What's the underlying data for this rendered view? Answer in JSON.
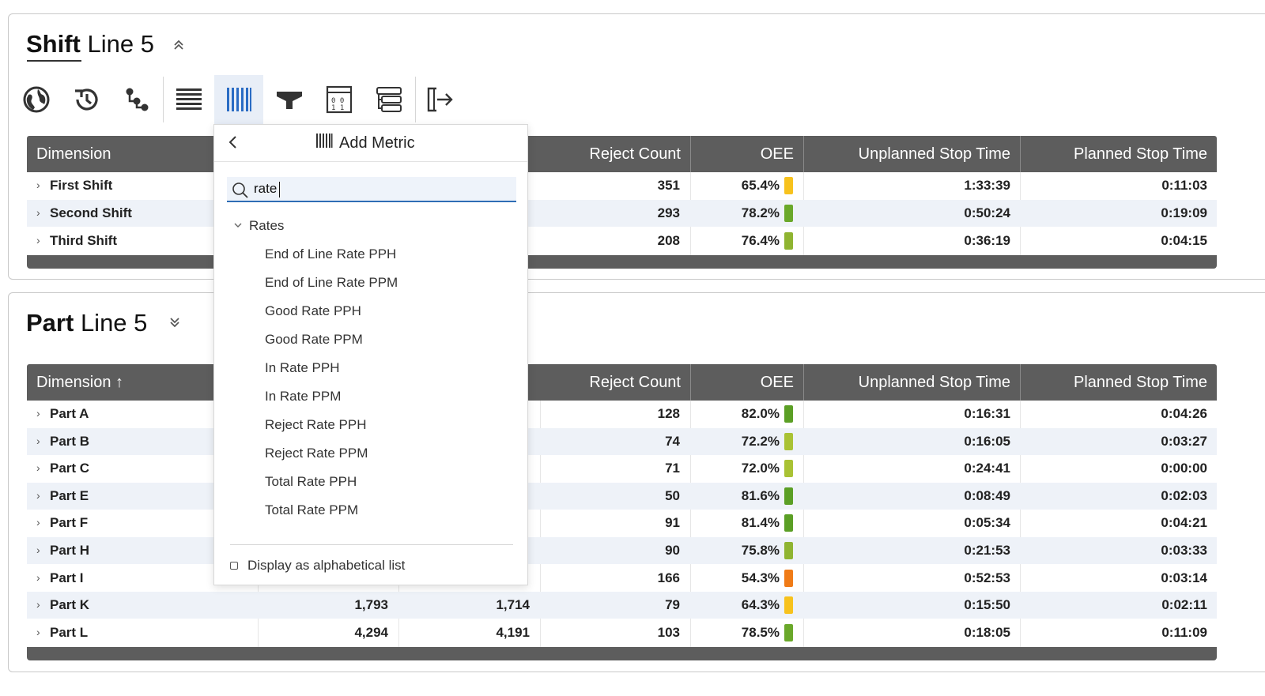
{
  "shift_panel": {
    "title_bold": "Shift",
    "title_rest": "Line 5",
    "columns": [
      "Dimension",
      "Reject Count",
      "OEE",
      "Unplanned Stop Time",
      "Planned Stop Time"
    ],
    "rows": [
      {
        "name": "First Shift",
        "reject": "351",
        "oee": "65.4%",
        "oee_color": "#f7c21d",
        "unplanned": "1:33:39",
        "planned": "0:11:03"
      },
      {
        "name": "Second Shift",
        "reject": "293",
        "oee": "78.2%",
        "oee_color": "#6aa82a",
        "unplanned": "0:50:24",
        "planned": "0:19:09"
      },
      {
        "name": "Third Shift",
        "reject": "208",
        "oee": "76.4%",
        "oee_color": "#8fb431",
        "unplanned": "0:36:19",
        "planned": "0:04:15"
      }
    ]
  },
  "toolbar": {
    "icons": [
      "globe-icon",
      "history-icon",
      "hierarchy-icon",
      "rows-icon",
      "columns-icon",
      "filter-icon",
      "calculator-icon",
      "grouping-icon",
      "export-icon"
    ]
  },
  "part_panel": {
    "title_bold": "Part",
    "title_rest": "Line 5",
    "columns": [
      "Dimension ↑",
      "Reject Count",
      "OEE",
      "Unplanned Stop Time",
      "Planned Stop Time"
    ],
    "rows": [
      {
        "name": "Part A",
        "c2": "",
        "c3": "",
        "reject": "128",
        "oee": "82.0%",
        "oee_color": "#5b9f25",
        "unplanned": "0:16:31",
        "planned": "0:04:26"
      },
      {
        "name": "Part B",
        "c2": "",
        "c3": "",
        "reject": "74",
        "oee": "72.2%",
        "oee_color": "#a9c234",
        "unplanned": "0:16:05",
        "planned": "0:03:27"
      },
      {
        "name": "Part C",
        "c2": "",
        "c3": "",
        "reject": "71",
        "oee": "72.0%",
        "oee_color": "#a9c234",
        "unplanned": "0:24:41",
        "planned": "0:00:00"
      },
      {
        "name": "Part E",
        "c2": "",
        "c3": "",
        "reject": "50",
        "oee": "81.6%",
        "oee_color": "#5b9f25",
        "unplanned": "0:08:49",
        "planned": "0:02:03"
      },
      {
        "name": "Part F",
        "c2": "",
        "c3": "",
        "reject": "91",
        "oee": "81.4%",
        "oee_color": "#5b9f25",
        "unplanned": "0:05:34",
        "planned": "0:04:21"
      },
      {
        "name": "Part H",
        "c2": "",
        "c3": "",
        "reject": "90",
        "oee": "75.8%",
        "oee_color": "#8fb431",
        "unplanned": "0:21:53",
        "planned": "0:03:33"
      },
      {
        "name": "Part I",
        "c2": "",
        "c3": "",
        "reject": "166",
        "oee": "54.3%",
        "oee_color": "#f07b17",
        "unplanned": "0:52:53",
        "planned": "0:03:14"
      },
      {
        "name": "Part K",
        "c2": "1,793",
        "c3": "1,714",
        "reject": "79",
        "oee": "64.3%",
        "oee_color": "#f7c21d",
        "unplanned": "0:15:50",
        "planned": "0:02:11"
      },
      {
        "name": "Part L",
        "c2": "4,294",
        "c3": "4,191",
        "reject": "103",
        "oee": "78.5%",
        "oee_color": "#6aa82a",
        "unplanned": "0:18:05",
        "planned": "0:11:09"
      }
    ]
  },
  "popup": {
    "title": "Add Metric",
    "search_value": "rate",
    "group": "Rates",
    "items": [
      "End of Line Rate PPH",
      "End of Line Rate PPM",
      "Good Rate PPH",
      "Good Rate PPM",
      "In Rate PPH",
      "In Rate PPM",
      "Reject Rate PPH",
      "Reject Rate PPM",
      "Total Rate PPH",
      "Total Rate PPM"
    ],
    "alpha_label": "Display as alphabetical list"
  }
}
